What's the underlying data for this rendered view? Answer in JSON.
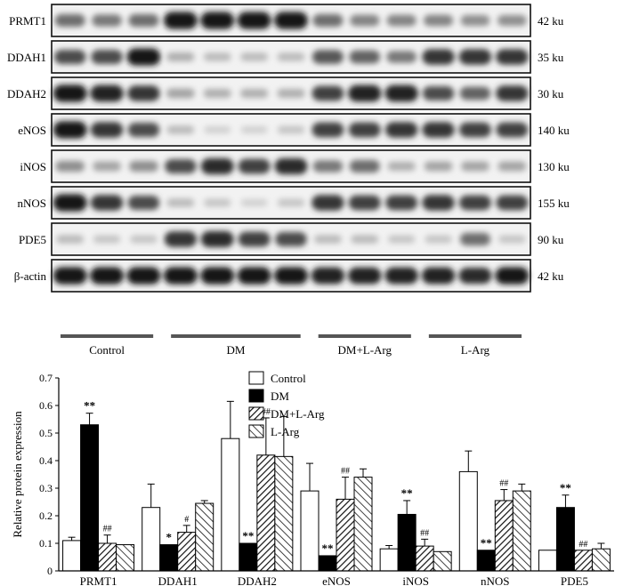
{
  "blot": {
    "rows": [
      {
        "protein": "PRMT1",
        "size": "42 ku",
        "pattern": [
          0.55,
          0.5,
          0.55,
          0.95,
          0.95,
          0.95,
          0.95,
          0.55,
          0.45,
          0.45,
          0.45,
          0.4,
          0.4
        ]
      },
      {
        "protein": "DDAH1",
        "size": "35 ku",
        "pattern": [
          0.7,
          0.7,
          0.95,
          0.25,
          0.2,
          0.2,
          0.2,
          0.65,
          0.6,
          0.5,
          0.8,
          0.8,
          0.8
        ]
      },
      {
        "protein": "DDAH2",
        "size": "30 ku",
        "pattern": [
          0.95,
          0.9,
          0.8,
          0.3,
          0.25,
          0.25,
          0.25,
          0.75,
          0.9,
          0.9,
          0.7,
          0.6,
          0.8
        ]
      },
      {
        "protein": "eNOS",
        "size": "140 ku",
        "pattern": [
          0.95,
          0.8,
          0.7,
          0.2,
          0.1,
          0.1,
          0.15,
          0.75,
          0.75,
          0.8,
          0.8,
          0.75,
          0.75
        ]
      },
      {
        "protein": "iNOS",
        "size": "130 ku",
        "pattern": [
          0.4,
          0.3,
          0.4,
          0.7,
          0.85,
          0.75,
          0.85,
          0.5,
          0.55,
          0.25,
          0.3,
          0.3,
          0.3
        ]
      },
      {
        "protein": "nNOS",
        "size": "155 ku",
        "pattern": [
          0.95,
          0.8,
          0.7,
          0.2,
          0.15,
          0.1,
          0.15,
          0.8,
          0.75,
          0.75,
          0.8,
          0.75,
          0.75
        ]
      },
      {
        "protein": "PDE5",
        "size": "90 ku",
        "pattern": [
          0.2,
          0.15,
          0.15,
          0.8,
          0.85,
          0.75,
          0.7,
          0.2,
          0.2,
          0.15,
          0.15,
          0.55,
          0.15
        ]
      },
      {
        "protein": "β-actin",
        "size": "42 ku",
        "pattern": [
          0.95,
          0.95,
          0.95,
          0.95,
          0.95,
          0.95,
          0.95,
          0.9,
          0.9,
          0.9,
          0.9,
          0.85,
          0.95
        ]
      }
    ],
    "groups": [
      {
        "label": "Control",
        "lanes": 3
      },
      {
        "label": "DM",
        "lanes": 4
      },
      {
        "label": "DM+L-Arg",
        "lanes": 3
      },
      {
        "label": "L-Arg",
        "lanes": 3
      }
    ]
  },
  "chart_data": {
    "type": "bar",
    "ylabel": "Relative protein expression",
    "ylim": [
      0,
      0.7
    ],
    "yticks": [
      "0",
      "0.1",
      "0.2",
      "0.3",
      "0.4",
      "0.5",
      "0.6",
      "0.7"
    ],
    "categories": [
      "PRMT1",
      "DDAH1",
      "DDAH2",
      "eNOS",
      "iNOS",
      "nNOS",
      "PDE5"
    ],
    "legend_position": "top-center",
    "series": [
      {
        "name": "Control",
        "pattern": "white",
        "values": [
          0.11,
          0.23,
          0.48,
          0.29,
          0.08,
          0.36,
          0.075
        ],
        "errors": [
          0.012,
          0.085,
          0.135,
          0.1,
          0.012,
          0.075,
          0.0
        ],
        "annotations": [
          "",
          "",
          "",
          "",
          "",
          "",
          ""
        ]
      },
      {
        "name": "DM",
        "pattern": "black",
        "values": [
          0.53,
          0.095,
          0.1,
          0.055,
          0.205,
          0.075,
          0.23
        ],
        "errors": [
          0.042,
          0.0,
          0.0,
          0.0,
          0.05,
          0.0,
          0.045
        ],
        "annotations": [
          "**",
          "*",
          "**",
          "**",
          "**",
          "**",
          "**"
        ]
      },
      {
        "name": "DM+L-Arg",
        "pattern": "hatch-dense",
        "values": [
          0.1,
          0.14,
          0.42,
          0.26,
          0.09,
          0.255,
          0.075
        ],
        "errors": [
          0.03,
          0.025,
          0.135,
          0.08,
          0.025,
          0.04,
          0.0
        ],
        "annotations": [
          "##",
          "#",
          "##",
          "##",
          "##",
          "##",
          "##"
        ]
      },
      {
        "name": "L-Arg",
        "pattern": "hatch-sparse",
        "values": [
          0.095,
          0.245,
          0.415,
          0.34,
          0.07,
          0.29,
          0.08
        ],
        "errors": [
          0.0,
          0.01,
          0.145,
          0.03,
          0.0,
          0.025,
          0.02
        ],
        "annotations": [
          "",
          "",
          "",
          "",
          "",
          "",
          ""
        ]
      }
    ]
  }
}
